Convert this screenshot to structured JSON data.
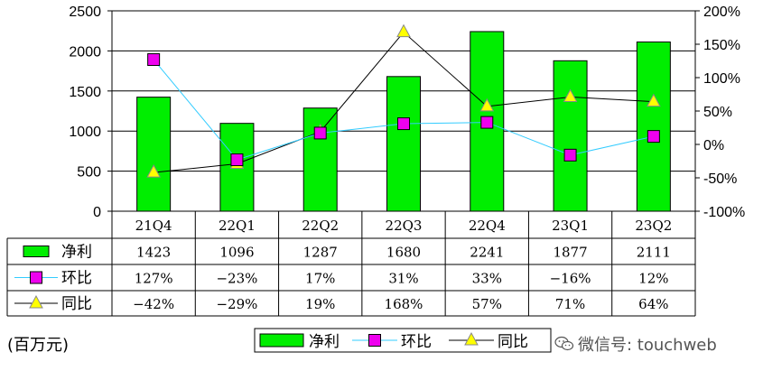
{
  "chart_data": {
    "type": "bar+line",
    "categories": [
      "21Q4",
      "22Q1",
      "22Q2",
      "22Q3",
      "22Q4",
      "23Q1",
      "23Q2"
    ],
    "series": [
      {
        "name": "净利",
        "kind": "bar",
        "axis": "left",
        "values": [
          1423,
          1096,
          1287,
          1680,
          2241,
          1877,
          2111
        ],
        "labels": [
          "1423",
          "1096",
          "1287",
          "1680",
          "2241",
          "1877",
          "2111"
        ],
        "color": "#00ee00",
        "marker": "rect"
      },
      {
        "name": "环比",
        "kind": "line",
        "axis": "right",
        "values": [
          127,
          -23,
          17,
          31,
          33,
          -16,
          12
        ],
        "labels": [
          "127%",
          "−23%",
          "17%",
          "31%",
          "33%",
          "−16%",
          "12%"
        ],
        "color": "#33ccff",
        "marker": "square",
        "marker_color": "#ee00ee"
      },
      {
        "name": "同比",
        "kind": "line",
        "axis": "right",
        "values": [
          -42,
          -29,
          19,
          168,
          57,
          71,
          64
        ],
        "labels": [
          "−42%",
          "−29%",
          "19%",
          "168%",
          "57%",
          "71%",
          "64%"
        ],
        "color": "#000000",
        "marker": "triangle",
        "marker_color": "#ffff00"
      }
    ],
    "left_axis": {
      "ylim": [
        0,
        2500
      ],
      "ticks": [
        "0",
        "500",
        "1000",
        "1500",
        "2000",
        "2500"
      ]
    },
    "right_axis": {
      "ylim": [
        -100,
        200
      ],
      "ticks": [
        "-100%",
        "-50%",
        "0%",
        "50%",
        "100%",
        "150%",
        "200%"
      ]
    },
    "grid": "horizontal",
    "data_table": true,
    "legend": "bottom"
  },
  "unit_note": "(百万元)",
  "watermark": "微信号: touchweb",
  "icons": {
    "watermark": "wechat-icon"
  }
}
